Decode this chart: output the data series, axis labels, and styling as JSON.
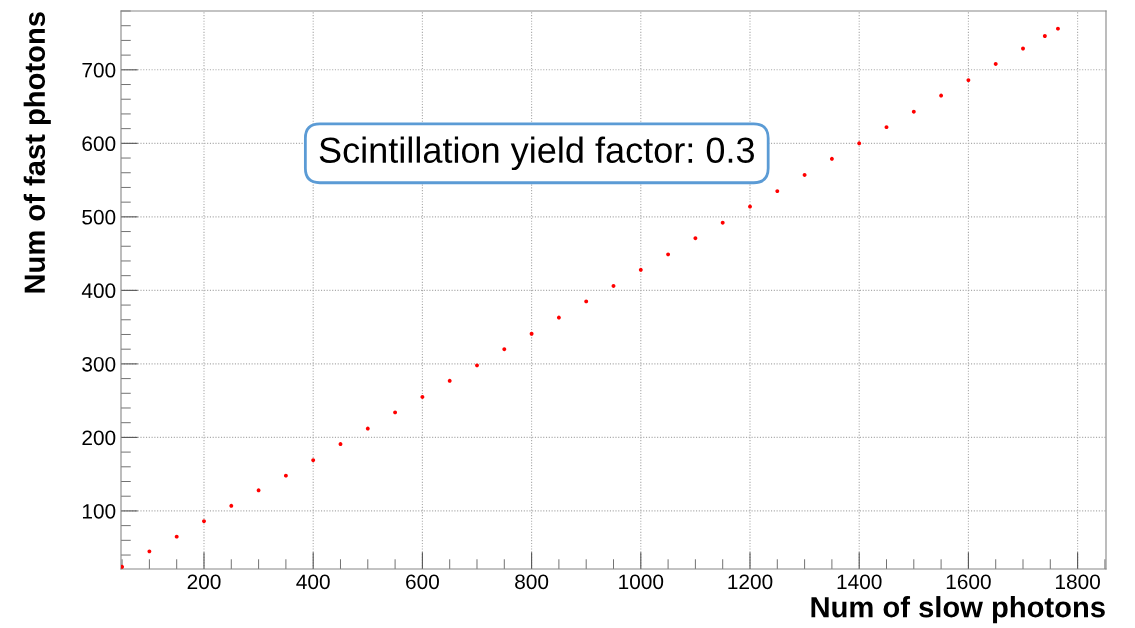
{
  "chart_data": {
    "type": "scatter",
    "xlabel": "Num of slow photons",
    "ylabel": "Num of fast photons",
    "annotations": [
      "Scintillation yield factor: 0.3"
    ],
    "x": [
      50,
      100,
      150,
      200,
      250,
      300,
      350,
      400,
      450,
      500,
      550,
      600,
      650,
      700,
      750,
      800,
      850,
      900,
      950,
      1000,
      1050,
      1100,
      1150,
      1200,
      1250,
      1300,
      1350,
      1400,
      1450,
      1500,
      1550,
      1600,
      1650,
      1700,
      1740,
      1764
    ],
    "series": [
      {
        "color": "#ff0000",
        "values": [
          24,
          45,
          65,
          86,
          107,
          128,
          148,
          169,
          191,
          212,
          234,
          255,
          277,
          298,
          320,
          341,
          363,
          385,
          406,
          428,
          449,
          471,
          492,
          514,
          535,
          557,
          579,
          600,
          622,
          643,
          665,
          686,
          708,
          729,
          746,
          756
        ]
      }
    ],
    "xlim": [
      48,
      1852
    ],
    "ylim": [
      21,
      780
    ],
    "xticks": [
      200,
      400,
      600,
      800,
      1000,
      1200,
      1400,
      1600,
      1800
    ],
    "yticks": [
      100,
      200,
      300,
      400,
      500,
      600,
      700
    ],
    "grid": true,
    "marker": "circle"
  }
}
